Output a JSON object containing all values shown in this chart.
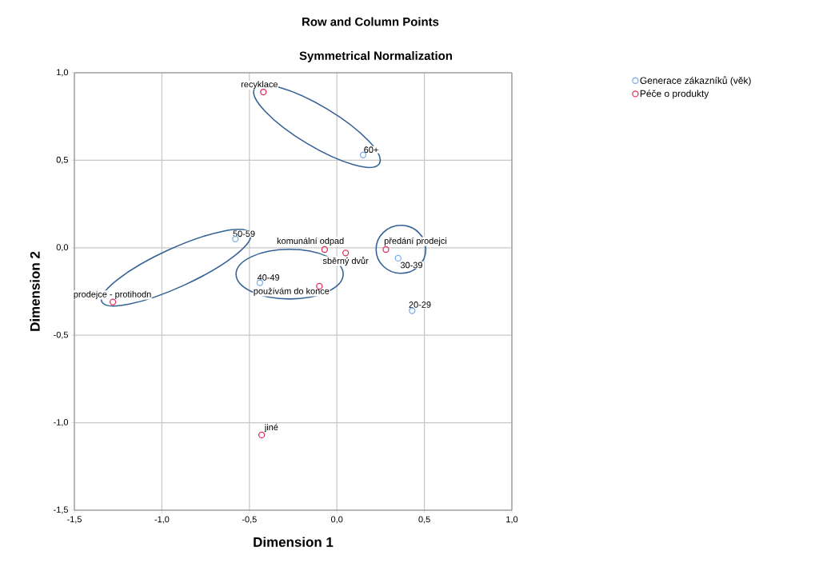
{
  "chart_data": {
    "type": "scatter",
    "title": "Row and Column Points",
    "subtitle": "Symmetrical Normalization",
    "xlabel": "Dimension 1",
    "ylabel": "Dimension 2",
    "series": [
      {
        "name": "Generace zákazníků (věk)",
        "color": "#7aaef0",
        "x": [
          0.15,
          -0.58,
          -0.44,
          0.35,
          0.43
        ],
        "values": [
          0.53,
          0.05,
          -0.2,
          -0.06,
          -0.36
        ]
      },
      {
        "name": "Péče o produkty",
        "color": "#e0305a",
        "x": [
          -0.42,
          -0.07,
          0.05,
          0.28,
          -1.28,
          -0.1,
          -0.43
        ],
        "values": [
          0.89,
          -0.01,
          -0.03,
          -0.01,
          -0.31,
          -0.22,
          -1.07
        ]
      }
    ],
    "annotations": [
      {
        "text": "60+",
        "x": 0.15,
        "y": 0.53
      },
      {
        "text": "50-59",
        "x": -0.58,
        "y": 0.05
      },
      {
        "text": "40-49",
        "x": -0.44,
        "y": -0.2
      },
      {
        "text": "30-39",
        "x": 0.35,
        "y": -0.06
      },
      {
        "text": "20-29",
        "x": 0.43,
        "y": -0.36
      },
      {
        "text": "recyklace",
        "x": -0.42,
        "y": 0.89
      },
      {
        "text": "komunální odpad",
        "x": -0.07,
        "y": -0.01
      },
      {
        "text": "sběrný dvůr",
        "x": 0.05,
        "y": -0.03
      },
      {
        "text": "předání prodejci",
        "x": 0.28,
        "y": -0.01
      },
      {
        "text": "prodejce - protihodn",
        "x": -1.28,
        "y": -0.31
      },
      {
        "text": "používám do konce",
        "x": -0.1,
        "y": -0.22
      },
      {
        "text": "jiné",
        "x": -0.43,
        "y": -1.07
      }
    ],
    "xlim": [
      -1.5,
      1.0
    ],
    "ylim": [
      -1.5,
      1.0
    ],
    "xticks": [
      {
        "value": -1.5,
        "label": "-1,5"
      },
      {
        "value": -1.0,
        "label": "-1,0"
      },
      {
        "value": -0.5,
        "label": "-0,5"
      },
      {
        "value": 0.0,
        "label": "0,0"
      },
      {
        "value": 0.5,
        "label": "0,5"
      },
      {
        "value": 1.0,
        "label": "1,0"
      }
    ],
    "yticks": [
      {
        "value": -1.5,
        "label": "-1,5"
      },
      {
        "value": -1.0,
        "label": "-1,0"
      },
      {
        "value": -0.5,
        "label": "-0,5"
      },
      {
        "value": 0.0,
        "label": "0,0"
      },
      {
        "value": 0.5,
        "label": "0,5"
      },
      {
        "value": 1.0,
        "label": "1,0"
      }
    ],
    "grid": true,
    "legend": "top right",
    "marker": "circle"
  }
}
